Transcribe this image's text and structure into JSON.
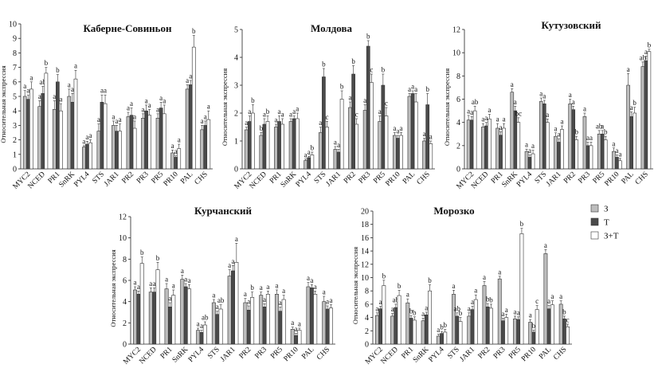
{
  "legend": {
    "placement": "right",
    "entries": [
      {
        "label": "З",
        "color": "#bdbdbd"
      },
      {
        "label": "Т",
        "color": "#4a4a4a"
      },
      {
        "label": "З+Т",
        "color": "#ffffff"
      }
    ]
  },
  "chart_data": [
    {
      "type": "bar",
      "title": "Каберне-Совиньон",
      "ylabel": "Относительная экспрессия",
      "ylim": [
        0,
        10
      ],
      "yticks": [
        0,
        1,
        2,
        3,
        4,
        5,
        6,
        7,
        8,
        9,
        10
      ],
      "categories": [
        "MYC2",
        "NCED",
        "PR1",
        "SnRK",
        "PYL4",
        "STS",
        "JAR1",
        "PR2",
        "PR3",
        "PR5",
        "PR10",
        "PAL",
        "CHS"
      ],
      "series": [
        {
          "name": "З",
          "values": [
            5.0,
            4.3,
            4.1,
            5.0,
            1.5,
            2.6,
            3.0,
            3.6,
            3.5,
            3.5,
            1.1,
            5.5,
            2.7
          ],
          "errors": [
            0.4,
            0.4,
            0.6,
            0.5,
            0.1,
            0.5,
            0.3,
            0.3,
            0.3,
            0.3,
            0.2,
            0.3,
            0.3
          ],
          "labels": [
            "a",
            "a",
            "a",
            "a",
            "a",
            "a",
            "a",
            "a",
            "a",
            "a",
            "a",
            "a",
            "a"
          ]
        },
        {
          "name": "Т",
          "values": [
            4.8,
            5.2,
            6.0,
            4.6,
            1.7,
            4.6,
            2.6,
            3.7,
            4.0,
            4.2,
            0.8,
            5.8,
            3.0
          ],
          "errors": [
            0.3,
            0.5,
            0.5,
            0.6,
            0.2,
            0.5,
            0.4,
            0.5,
            0.4,
            0.4,
            0.1,
            0.3,
            0.3
          ],
          "labels": [
            "a",
            "ab",
            "b",
            "a",
            "a",
            "a",
            "a",
            "a",
            "a",
            "a",
            "a",
            "a",
            "a"
          ]
        },
        {
          "name": "З+Т",
          "values": [
            5.5,
            6.6,
            4.0,
            6.2,
            1.8,
            4.5,
            2.6,
            2.8,
            3.7,
            3.8,
            1.4,
            8.4,
            3.4
          ],
          "errors": [
            0.5,
            0.4,
            0.5,
            0.6,
            0.2,
            0.6,
            0.5,
            0.5,
            0.4,
            0.6,
            0.3,
            0.8,
            0.6
          ],
          "labels": [
            "a",
            "b",
            "a",
            "a",
            "a",
            "a",
            "a",
            "a",
            "a",
            "a",
            "a",
            "b",
            "a"
          ]
        }
      ]
    },
    {
      "type": "bar",
      "title": "Молдова",
      "ylabel": "Относительная экспрессия",
      "ylim": [
        0,
        5
      ],
      "yticks": [
        0,
        1,
        2,
        3,
        4,
        5
      ],
      "categories": [
        "MYC2",
        "NCED",
        "PR1",
        "SnRK",
        "PYL4",
        "STS",
        "JAR1",
        "PR2",
        "PR3",
        "PR5",
        "PR10",
        "PAL",
        "CHS"
      ],
      "series": [
        {
          "name": "З",
          "values": [
            1.4,
            1.2,
            1.5,
            1.7,
            0.3,
            1.3,
            0.7,
            2.2,
            2.1,
            1.7,
            1.2,
            2.6,
            1.0
          ],
          "errors": [
            0.1,
            0.1,
            0.1,
            0.1,
            0.05,
            0.2,
            0.1,
            0.2,
            0.2,
            0.2,
            0.1,
            0.1,
            0.1
          ],
          "labels": [
            "a",
            "b",
            "a",
            "a",
            "a",
            "a",
            "a",
            "a",
            "a",
            "a",
            "a",
            "a",
            "a"
          ]
        },
        {
          "name": "Т",
          "values": [
            1.7,
            1.6,
            1.7,
            1.8,
            0.4,
            3.3,
            0.6,
            3.4,
            4.4,
            3.0,
            1.1,
            2.7,
            2.3
          ],
          "errors": [
            0.2,
            0.2,
            0.2,
            0.1,
            0.05,
            0.3,
            0.1,
            0.3,
            0.2,
            0.4,
            0.1,
            0.1,
            0.4
          ],
          "labels": [
            "a",
            "a",
            "a",
            "a",
            "a",
            "b",
            "a",
            "b",
            "b",
            "b",
            "a",
            "a",
            "b"
          ]
        },
        {
          "name": "З+Т",
          "values": [
            2.0,
            1.7,
            1.6,
            1.8,
            0.5,
            1.5,
            2.5,
            1.6,
            3.1,
            1.9,
            1.2,
            2.4,
            0.9
          ],
          "errors": [
            0.3,
            0.2,
            0.2,
            0.2,
            0.1,
            0.2,
            0.3,
            0.2,
            0.3,
            0.3,
            0.1,
            0.3,
            0.1
          ],
          "labels": [
            "b",
            "b",
            "a",
            "a",
            "b",
            "c",
            "b",
            "c",
            "c",
            "c",
            "a",
            "a",
            "a"
          ]
        }
      ]
    },
    {
      "type": "bar",
      "title": "Кутузовский",
      "ylabel": "Относительная экспрессия",
      "ylim": [
        0,
        12
      ],
      "yticks": [
        0,
        2,
        4,
        6,
        8,
        10,
        12
      ],
      "categories": [
        "MYC2",
        "NCED",
        "PR1",
        "SnRK",
        "PYL4",
        "STS",
        "JAR1",
        "PR2",
        "PR3",
        "PR5",
        "PR10",
        "PAL",
        "CHS"
      ],
      "series": [
        {
          "name": "З",
          "values": [
            4.2,
            3.6,
            3.5,
            6.6,
            1.5,
            5.8,
            2.8,
            5.6,
            4.5,
            3.0,
            1.5,
            7.2,
            8.8
          ],
          "errors": [
            0.4,
            0.3,
            0.4,
            0.3,
            0.2,
            0.3,
            0.3,
            0.4,
            0.3,
            0.3,
            0.3,
            1.0,
            0.4
          ],
          "labels": [
            "a",
            "a",
            "a",
            "a",
            "a",
            "a",
            "a",
            "a",
            "a",
            "ab",
            "a",
            "a",
            "ab"
          ]
        },
        {
          "name": "Т",
          "values": [
            4.2,
            3.7,
            2.9,
            5.0,
            1.0,
            5.6,
            2.3,
            5.1,
            2.0,
            3.0,
            1.0,
            4.5,
            9.3
          ],
          "errors": [
            0.3,
            0.3,
            0.3,
            0.4,
            0.2,
            0.3,
            0.3,
            0.3,
            0.3,
            0.3,
            0.2,
            0.4,
            0.4
          ],
          "labels": [
            "a",
            "a",
            "a",
            "a",
            "a",
            "a",
            "a",
            "a",
            "a",
            "a",
            "a",
            "a",
            "a"
          ]
        },
        {
          "name": "З+Т",
          "values": [
            5.0,
            4.3,
            3.5,
            4.0,
            1.3,
            4.0,
            3.4,
            2.5,
            2.0,
            2.5,
            0.7,
            4.8,
            10.1
          ],
          "errors": [
            0.4,
            0.4,
            0.4,
            0.4,
            0.3,
            0.3,
            0.3,
            0.3,
            0.3,
            0.3,
            0.2,
            0.5,
            0.2
          ],
          "labels": [
            "ab",
            "a",
            "a",
            "bc",
            "a",
            "a",
            "a",
            "b",
            "a",
            "b",
            "a",
            "b",
            "b"
          ]
        }
      ]
    },
    {
      "type": "bar",
      "title": "Курчанский",
      "ylabel": "Относительная экспрессия",
      "ylim": [
        0,
        12
      ],
      "yticks": [
        0,
        2,
        4,
        6,
        8,
        10,
        12
      ],
      "categories": [
        "MYC2",
        "NCED",
        "PR1",
        "SnRK",
        "PYL4",
        "STS",
        "JAR1",
        "PR2",
        "PR3",
        "PR5",
        "PR10",
        "PAL",
        "CHS"
      ],
      "series": [
        {
          "name": "З",
          "values": [
            5.1,
            4.9,
            5.2,
            6.1,
            1.3,
            3.9,
            6.4,
            3.9,
            4.6,
            4.7,
            1.4,
            5.4,
            4.0
          ],
          "errors": [
            0.3,
            0.4,
            0.5,
            0.4,
            0.2,
            0.3,
            0.6,
            0.4,
            0.3,
            0.4,
            0.2,
            0.4,
            0.5
          ],
          "labels": [
            "a",
            "a",
            "a",
            "a",
            "a",
            "a",
            "a",
            "a",
            "a",
            "a",
            "a",
            "a",
            "a"
          ]
        },
        {
          "name": "Т",
          "values": [
            4.7,
            4.9,
            3.5,
            5.4,
            1.1,
            2.8,
            6.9,
            3.2,
            3.5,
            3.1,
            0.8,
            5.3,
            3.3
          ],
          "errors": [
            0.3,
            0.4,
            0.4,
            0.3,
            0.2,
            0.3,
            0.5,
            0.4,
            0.3,
            0.4,
            0.2,
            0.3,
            0.3
          ],
          "labels": [
            "a",
            "a",
            "a",
            "a",
            "a",
            "a",
            "a",
            "a",
            "a",
            "a",
            "a",
            "a",
            "a"
          ]
        },
        {
          "name": "З+Т",
          "values": [
            7.6,
            7.0,
            4.6,
            5.2,
            1.8,
            3.3,
            7.7,
            4.4,
            4.7,
            4.2,
            1.3,
            4.7,
            3.4
          ],
          "errors": [
            0.6,
            0.7,
            0.5,
            0.4,
            0.3,
            0.4,
            1.8,
            0.5,
            0.3,
            0.4,
            0.2,
            0.3,
            0.3
          ],
          "labels": [
            "b",
            "b",
            "a",
            "a",
            "ab",
            "ab",
            "a",
            "b",
            "a",
            "a",
            "a",
            "a",
            "a"
          ]
        }
      ]
    },
    {
      "type": "bar",
      "title": "Морозко",
      "ylabel": "Относительная экспрессия",
      "ylim": [
        0,
        20
      ],
      "yticks": [
        0,
        2,
        4,
        6,
        8,
        10,
        12,
        14,
        16,
        18,
        20
      ],
      "categories": [
        "MYC2",
        "NCED",
        "PR1",
        "SnRK",
        "PYL4",
        "STS",
        "JAR1",
        "PR2",
        "PR3",
        "PR5",
        "PR10",
        "PAL",
        "CHS"
      ],
      "series": [
        {
          "name": "З",
          "values": [
            4.3,
            4.2,
            6.2,
            3.5,
            1.2,
            7.5,
            4.2,
            8.8,
            9.8,
            3.8,
            3.3,
            13.6,
            6.0
          ],
          "errors": [
            0.4,
            0.4,
            0.6,
            0.4,
            0.3,
            0.6,
            0.5,
            0.6,
            0.4,
            0.4,
            0.4,
            0.6,
            0.5
          ],
          "labels": [
            "a",
            "a",
            "a",
            "a",
            "a",
            "a",
            "a",
            "a",
            "a",
            "a",
            "a",
            "a",
            "a"
          ]
        },
        {
          "name": "Т",
          "values": [
            5.3,
            5.5,
            3.9,
            4.4,
            1.6,
            4.2,
            5.2,
            5.6,
            3.5,
            3.7,
            1.8,
            5.3,
            3.8
          ],
          "errors": [
            0.4,
            0.5,
            0.4,
            0.4,
            0.3,
            0.5,
            0.5,
            0.5,
            0.4,
            0.4,
            0.3,
            0.5,
            0.4
          ],
          "labels": [
            "a",
            "ab",
            "b",
            "a",
            "b",
            "ab",
            "a",
            "b",
            "a",
            "a",
            "b",
            "a",
            "b"
          ]
        },
        {
          "name": "З+Т",
          "values": [
            8.8,
            7.3,
            3.6,
            8.0,
            1.8,
            3.4,
            6.7,
            5.4,
            4.0,
            16.6,
            5.2,
            5.9,
            2.6
          ],
          "errors": [
            0.8,
            0.8,
            0.5,
            0.9,
            0.4,
            0.6,
            0.7,
            0.6,
            0.5,
            0.8,
            0.6,
            0.6,
            0.4
          ],
          "labels": [
            "b",
            "b",
            "b",
            "b",
            "b",
            "b",
            "a",
            "b",
            "a",
            "b",
            "c",
            "a",
            "c"
          ]
        }
      ]
    }
  ]
}
